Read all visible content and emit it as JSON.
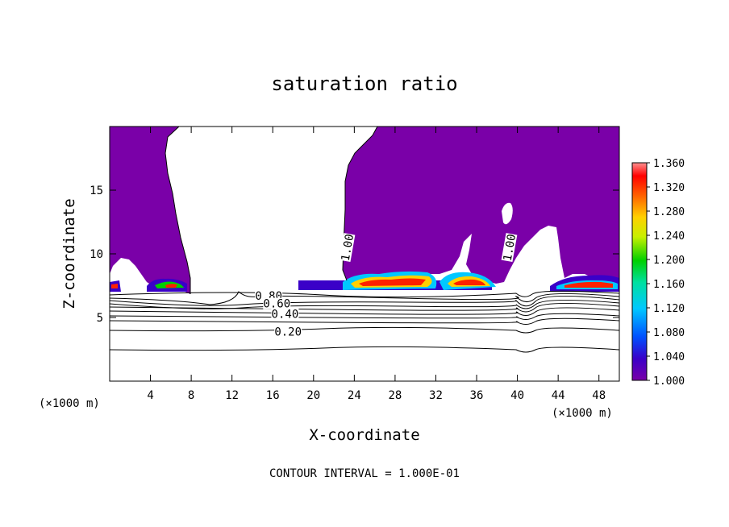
{
  "chart_data": {
    "type": "heatmap",
    "title": "saturation ratio",
    "xlabel": "X-coordinate",
    "ylabel": "Z-coordinate",
    "x_unit_left": "(×1000 m)",
    "x_unit_right": "(×1000 m)",
    "xlim": [
      0,
      50
    ],
    "ylim": [
      0,
      20
    ],
    "x_ticks": [
      4,
      8,
      12,
      16,
      20,
      24,
      28,
      32,
      36,
      40,
      44,
      48
    ],
    "y_ticks": [
      5,
      10,
      15
    ],
    "colorbar": {
      "min": 1.0,
      "max": 1.36,
      "ticks": [
        "1.000",
        "1.040",
        "1.080",
        "1.120",
        "1.160",
        "1.200",
        "1.240",
        "1.280",
        "1.320",
        "1.360"
      ]
    },
    "contour_labels": [
      {
        "text": "0.80",
        "x": 15.6,
        "z": 6.7
      },
      {
        "text": "0.60",
        "x": 16.4,
        "z": 6.1
      },
      {
        "text": "0.40",
        "x": 17.2,
        "z": 5.3
      },
      {
        "text": "0.20",
        "x": 17.5,
        "z": 3.9
      },
      {
        "text": "1.00",
        "x": 23.3,
        "z": 10.5
      },
      {
        "text": "1.00",
        "x": 39.2,
        "z": 10.5
      }
    ],
    "contour_interval_text": "CONTOUR INTERVAL = 1.000E-01"
  }
}
